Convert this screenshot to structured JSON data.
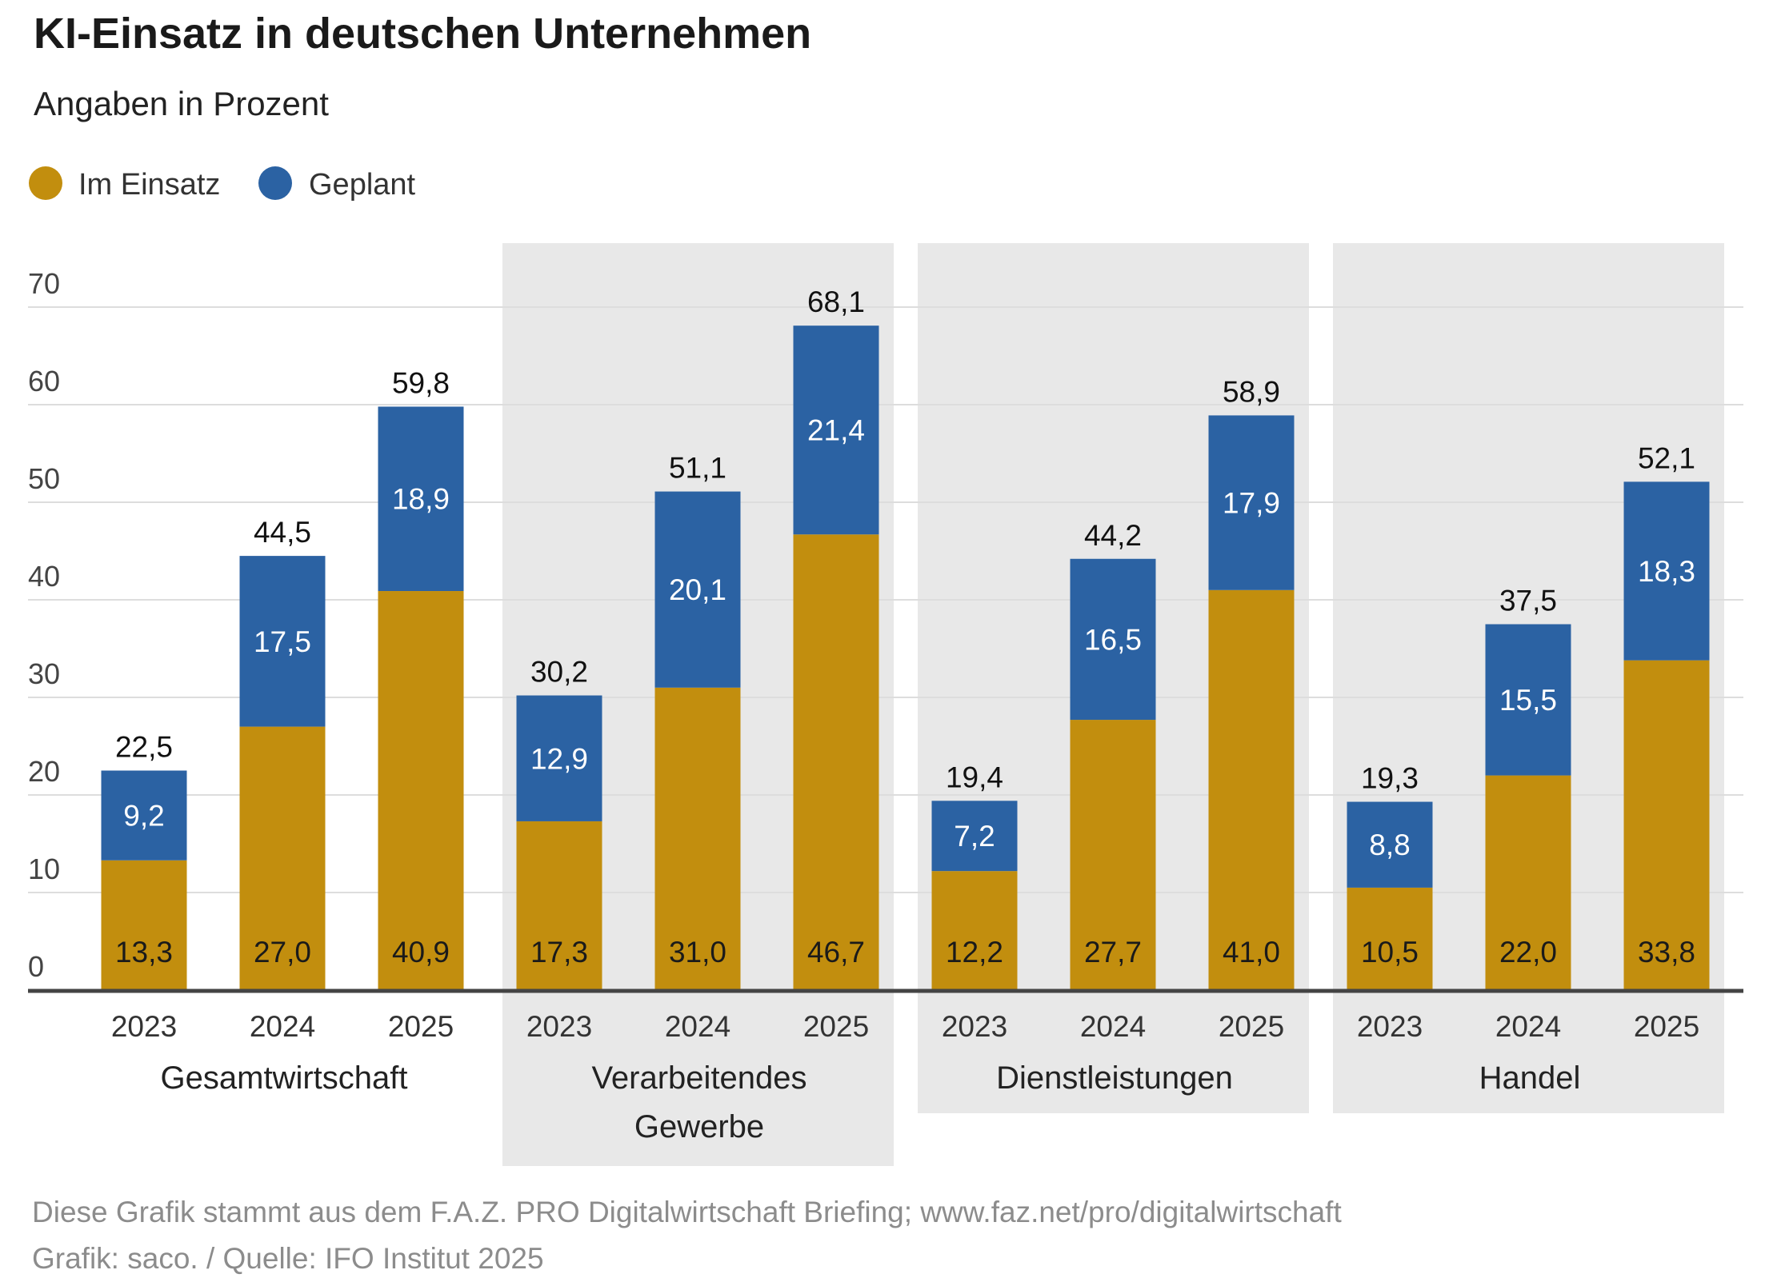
{
  "chart_data": {
    "type": "bar",
    "stacked": true,
    "title": "KI-Einsatz in deutschen Unternehmen",
    "subtitle": "Angaben in Prozent",
    "ylim": [
      0,
      70
    ],
    "yticks": [
      0,
      10,
      20,
      30,
      40,
      50,
      60,
      70
    ],
    "grid": true,
    "legend_position": "top-left",
    "groups": [
      {
        "label": [
          "Gesamtwirtschaft"
        ],
        "shaded": false,
        "years": [
          "2023",
          "2024",
          "2025"
        ],
        "im_einsatz": [
          13.3,
          27.0,
          40.9
        ],
        "geplant": [
          9.2,
          17.5,
          18.9
        ],
        "total": [
          22.5,
          44.5,
          59.8
        ]
      },
      {
        "label": [
          "Verarbeitendes",
          "Gewerbe"
        ],
        "shaded": true,
        "years": [
          "2023",
          "2024",
          "2025"
        ],
        "im_einsatz": [
          17.3,
          31.0,
          46.7
        ],
        "geplant": [
          12.9,
          20.1,
          21.4
        ],
        "total": [
          30.2,
          51.1,
          68.1
        ]
      },
      {
        "label": [
          "Dienstleistungen"
        ],
        "shaded": true,
        "years": [
          "2023",
          "2024",
          "2025"
        ],
        "im_einsatz": [
          12.2,
          27.7,
          41.0
        ],
        "geplant": [
          7.2,
          16.5,
          17.9
        ],
        "total": [
          19.4,
          44.2,
          58.9
        ]
      },
      {
        "label": [
          "Handel"
        ],
        "shaded": true,
        "years": [
          "2023",
          "2024",
          "2025"
        ],
        "im_einsatz": [
          10.5,
          22.0,
          33.8
        ],
        "geplant": [
          8.8,
          15.5,
          18.3
        ],
        "total": [
          19.3,
          37.5,
          52.1
        ]
      }
    ],
    "series": [
      {
        "name": "Im Einsatz",
        "color": "#C28E0E"
      },
      {
        "name": "Geplant",
        "color": "#2B62A3"
      }
    ],
    "decimal_separator": ","
  },
  "footer": {
    "line1": "Diese  Grafik stammt aus dem F.A.Z. PRO Digitalwirtschaft Briefing; www.faz.net/pro/digitalwirtschaft",
    "line2": "Grafik: saco. / Quelle: IFO Institut 2025"
  },
  "colors": {
    "panel": "#E8E8E8",
    "grid": "#DDDDDD",
    "axis": "#444444"
  }
}
